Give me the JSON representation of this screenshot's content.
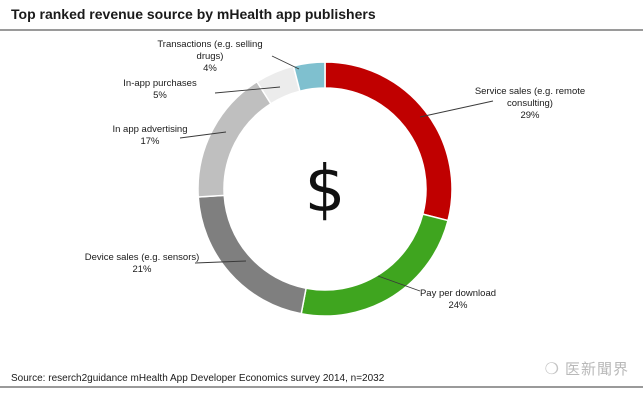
{
  "chart_data": {
    "type": "pie",
    "title": "Top ranked revenue source by mHealth app publishers",
    "center_symbol": "$",
    "source": "Source: reserch2guidance mHealth App Developer Economics survey 2014, n=2032",
    "watermark": "医新聞界",
    "slices": [
      {
        "label_lines": [
          "Service sales (e.g. remote",
          "consulting)"
        ],
        "value_label": "29%",
        "value": 29,
        "color": "#c00000"
      },
      {
        "label_lines": [
          "Pay per download"
        ],
        "value_label": "24%",
        "value": 24,
        "color": "#3fa51f"
      },
      {
        "label_lines": [
          "Device sales (e.g. sensors)"
        ],
        "value_label": "21%",
        "value": 21,
        "color": "#7f7f7f"
      },
      {
        "label_lines": [
          "In app advertising"
        ],
        "value_label": "17%",
        "value": 17,
        "color": "#bfbfbf"
      },
      {
        "label_lines": [
          "In-app purchases"
        ],
        "value_label": "5%",
        "value": 5,
        "color": "#ececec"
      },
      {
        "label_lines": [
          "Transactions (e.g. selling",
          "drugs)"
        ],
        "value_label": "4%",
        "value": 4,
        "color": "#7fc0cf"
      }
    ]
  }
}
